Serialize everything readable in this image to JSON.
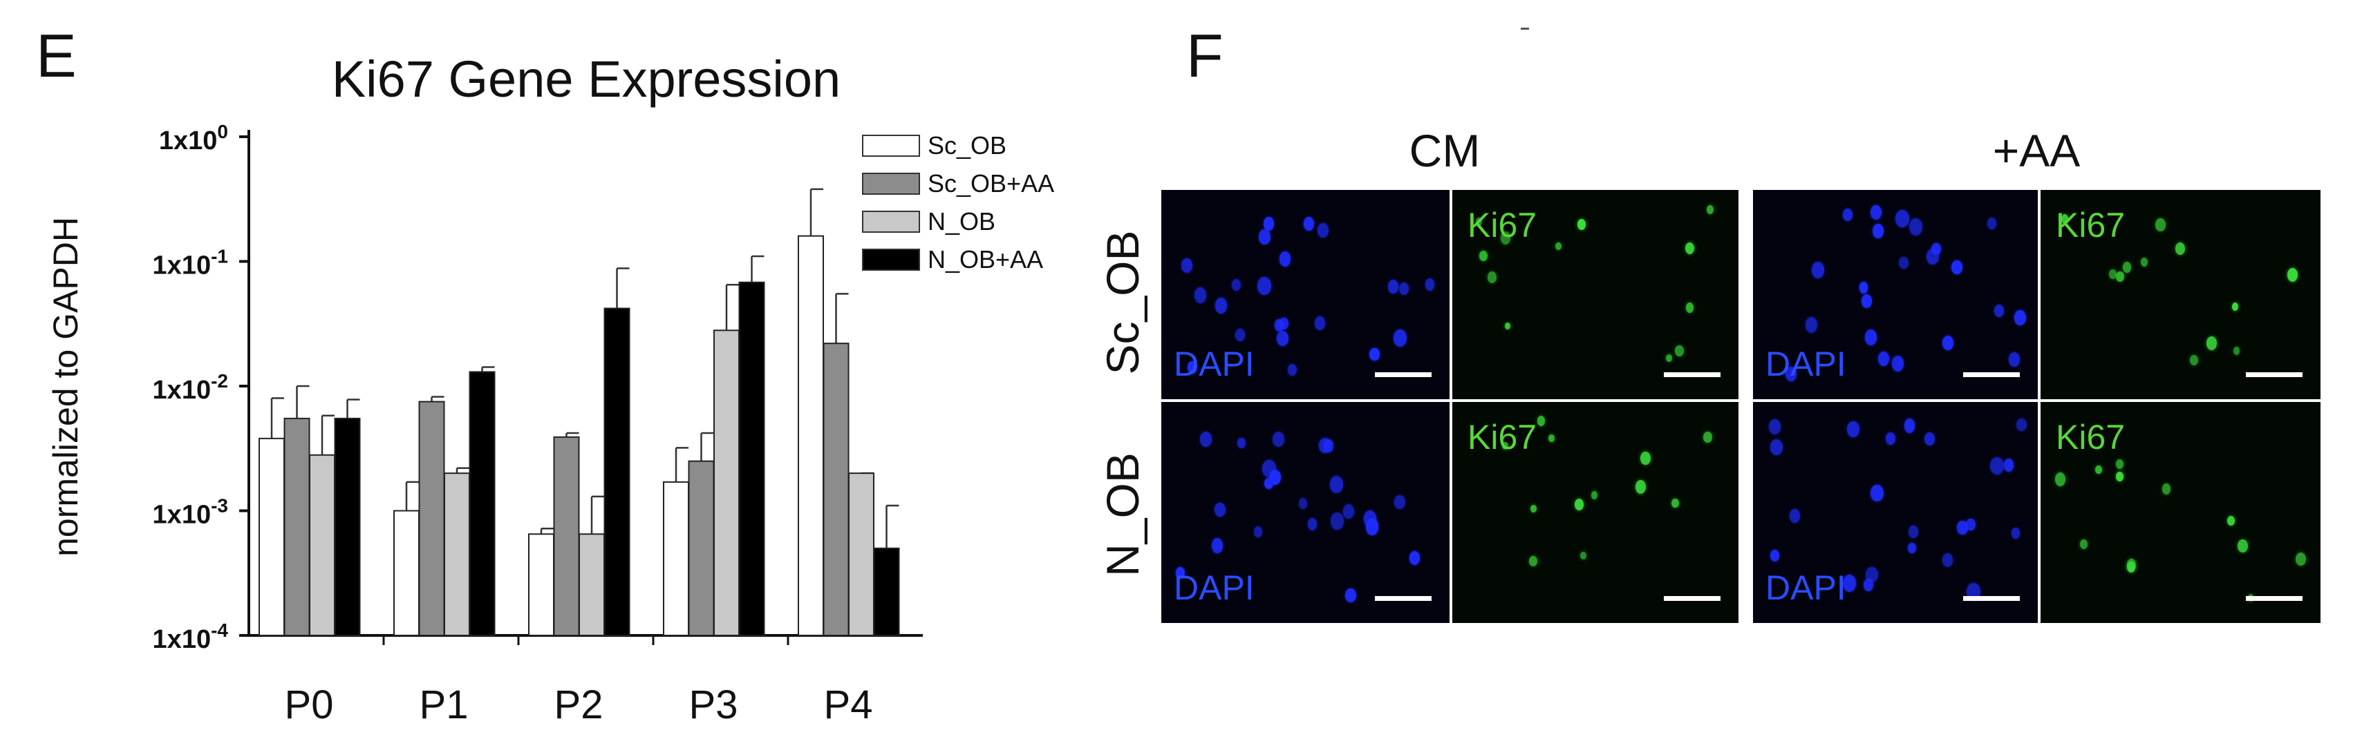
{
  "panel_e": {
    "letter": "E",
    "chart_data": {
      "type": "bar",
      "title": "Ki67 Gene Expression",
      "ylabel": "normalized to GAPDH",
      "xlabel": "",
      "yscale": "log",
      "ylim": [
        0.0001,
        1
      ],
      "yticks": [
        {
          "value": 1,
          "base": "1x10",
          "exp": "0"
        },
        {
          "value": 0.1,
          "base": "1x10",
          "exp": "-1"
        },
        {
          "value": 0.01,
          "base": "1x10",
          "exp": "-2"
        },
        {
          "value": 0.001,
          "base": "1x10",
          "exp": "-3"
        },
        {
          "value": 0.0001,
          "base": "1x10",
          "exp": "-4"
        }
      ],
      "categories": [
        "P0",
        "P1",
        "P2",
        "P3",
        "P4"
      ],
      "legend_position": "top-right",
      "series": [
        {
          "name": "Sc_OB",
          "color": "#ffffff",
          "values": [
            0.0038,
            0.001,
            0.00065,
            0.0017,
            0.16
          ],
          "errors": [
            0.008,
            0.0017,
            0.00072,
            0.0032,
            0.38
          ]
        },
        {
          "name": "Sc_OB+AA",
          "color": "#8c8c8c",
          "values": [
            0.0055,
            0.0075,
            0.0039,
            0.0025,
            0.022
          ],
          "errors": [
            0.01,
            0.0082,
            0.0042,
            0.0042,
            0.055
          ]
        },
        {
          "name": "N_OB",
          "color": "#c8c8c8",
          "values": [
            0.0028,
            0.002,
            0.00065,
            0.028,
            0.002
          ],
          "errors": [
            0.0058,
            0.0022,
            0.0013,
            0.065,
            0.002
          ]
        },
        {
          "name": "N_OB+AA",
          "color": "#000000",
          "values": [
            0.0055,
            0.013,
            0.042,
            0.068,
            0.0005
          ],
          "errors": [
            0.0078,
            0.0142,
            0.088,
            0.11,
            0.0011
          ]
        }
      ]
    }
  },
  "panel_f": {
    "letter": "F",
    "conditions": [
      "CM",
      "+AA"
    ],
    "rows": [
      "Sc_OB",
      "N_OB"
    ],
    "channel_dapi": "DAPI",
    "channel_ki67": "Ki67"
  }
}
